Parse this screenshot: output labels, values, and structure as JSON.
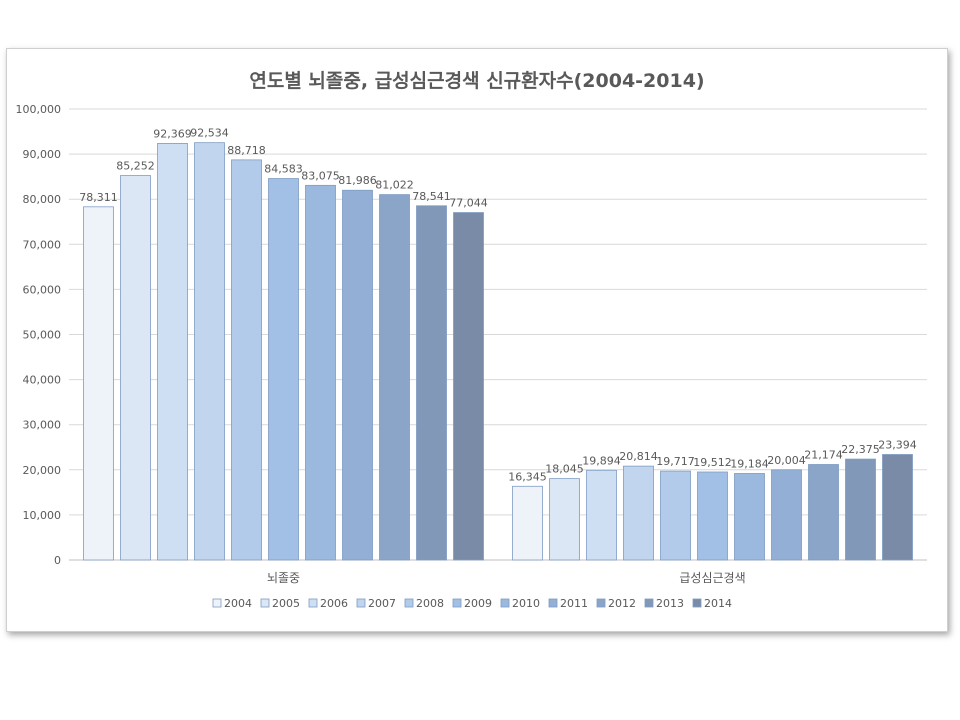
{
  "chart_data": {
    "type": "bar",
    "title": "연도별 뇌졸중, 급성심근경색  신규환자수(2004-2014)",
    "categories": [
      "뇌졸중",
      "급성심근경색"
    ],
    "series": [
      {
        "name": "2004",
        "values": [
          78311,
          16345
        ],
        "labels": [
          "78,311",
          "16,345"
        ],
        "color": "#EEF3FA"
      },
      {
        "name": "2005",
        "values": [
          85252,
          18045
        ],
        "labels": [
          "85,252",
          "18,045"
        ],
        "color": "#DCE7F5"
      },
      {
        "name": "2006",
        "values": [
          92369,
          19894
        ],
        "labels": [
          "92,369",
          "19,894"
        ],
        "color": "#CFDFF3"
      },
      {
        "name": "2007",
        "values": [
          92534,
          20814
        ],
        "labels": [
          "92,534",
          "20,814"
        ],
        "color": "#C1D5EE"
      },
      {
        "name": "2008",
        "values": [
          88718,
          19717
        ],
        "labels": [
          "88,718",
          "19,717"
        ],
        "color": "#B2CBEA"
      },
      {
        "name": "2009",
        "values": [
          84583,
          19512
        ],
        "labels": [
          "84,583",
          "19,512"
        ],
        "color": "#A2C0E6"
      },
      {
        "name": "2010",
        "values": [
          83075,
          19184
        ],
        "labels": [
          "83,075",
          "19,184"
        ],
        "color": "#9BB9DF"
      },
      {
        "name": "2011",
        "values": [
          81986,
          20004
        ],
        "labels": [
          "81,986",
          "20,004"
        ],
        "color": "#93AFD5"
      },
      {
        "name": "2012",
        "values": [
          81022,
          21174
        ],
        "labels": [
          "81,022",
          "21,174"
        ],
        "color": "#8AA5C8"
      },
      {
        "name": "2013",
        "values": [
          78541,
          22375
        ],
        "labels": [
          "78,541",
          "22,375"
        ],
        "color": "#8198B8"
      },
      {
        "name": "2014",
        "values": [
          77044,
          23394
        ],
        "labels": [
          "77,044",
          "23,394"
        ],
        "color": "#798BA6"
      }
    ],
    "ylim": [
      0,
      100000
    ],
    "yticks": [
      0,
      10000,
      20000,
      30000,
      40000,
      50000,
      60000,
      70000,
      80000,
      90000,
      100000
    ],
    "ytick_labels": [
      "0",
      "10,000",
      "20,000",
      "30,000",
      "40,000",
      "50,000",
      "60,000",
      "70,000",
      "80,000",
      "90,000",
      "100,000"
    ],
    "grid": true,
    "legend_position": "bottom",
    "xlabel": "",
    "ylabel": ""
  }
}
